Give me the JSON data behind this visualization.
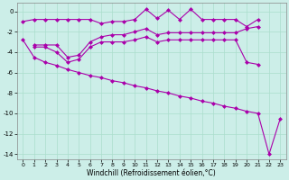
{
  "xlabel": "Windchill (Refroidissement éolien,°C)",
  "background_color": "#cceee8",
  "grid_color": "#aaddcc",
  "line_color": "#aa00aa",
  "xlim": [
    -0.5,
    23.5
  ],
  "ylim": [
    -14.5,
    0.8
  ],
  "yticks": [
    0,
    -2,
    -4,
    -6,
    -8,
    -10,
    -12,
    -14
  ],
  "xticks": [
    0,
    1,
    2,
    3,
    4,
    5,
    6,
    7,
    8,
    9,
    10,
    11,
    12,
    13,
    14,
    15,
    16,
    17,
    18,
    19,
    20,
    21,
    22,
    23
  ],
  "curve1_x": [
    0,
    1,
    2,
    3,
    4,
    5,
    6,
    7,
    8,
    9,
    10,
    11,
    12,
    13,
    14,
    15,
    16,
    17,
    18,
    19,
    20,
    21
  ],
  "curve1_y": [
    -1.0,
    -0.8,
    -0.8,
    -0.8,
    -0.8,
    -0.8,
    -0.8,
    -1.2,
    -1.0,
    -1.0,
    -0.8,
    0.2,
    -0.7,
    0.1,
    -0.8,
    0.2,
    -0.8,
    -0.8,
    -0.8,
    -0.8,
    -1.5,
    -0.8
  ],
  "curve2_x": [
    1,
    2,
    3,
    4,
    5,
    6,
    7,
    8,
    9,
    10,
    11,
    12,
    13,
    14,
    15,
    16,
    17,
    18,
    19,
    20,
    21
  ],
  "curve2_y": [
    -3.3,
    -3.3,
    -3.3,
    -4.5,
    -4.3,
    -3.0,
    -2.5,
    -2.3,
    -2.3,
    -2.0,
    -1.7,
    -2.3,
    -2.1,
    -2.1,
    -2.1,
    -2.1,
    -2.1,
    -2.1,
    -2.1,
    -1.7,
    -1.5
  ],
  "curve3_x": [
    1,
    2,
    3,
    4,
    5,
    6,
    7,
    8,
    9,
    10,
    11,
    12,
    13,
    14,
    15,
    16,
    17,
    18,
    19,
    20,
    21
  ],
  "curve3_y": [
    -3.5,
    -3.5,
    -4.0,
    -5.0,
    -4.7,
    -3.5,
    -3.0,
    -3.0,
    -3.0,
    -2.8,
    -2.5,
    -3.0,
    -2.8,
    -2.8,
    -2.8,
    -2.8,
    -2.8,
    -2.8,
    -2.8,
    -5.0,
    -5.2
  ],
  "curve4_x": [
    0,
    1,
    2,
    3,
    4,
    5,
    6,
    7,
    8,
    9,
    10,
    11,
    12,
    13,
    14,
    15,
    16,
    17,
    18,
    19,
    20,
    21,
    22,
    23
  ],
  "curve4_y": [
    -2.8,
    -4.5,
    -5.0,
    -5.3,
    -5.7,
    -6.0,
    -6.3,
    -6.5,
    -6.8,
    -7.0,
    -7.3,
    -7.5,
    -7.8,
    -8.0,
    -8.3,
    -8.5,
    -8.8,
    -9.0,
    -9.3,
    -9.5,
    -9.8,
    -10.0,
    -14.0,
    -10.5
  ]
}
